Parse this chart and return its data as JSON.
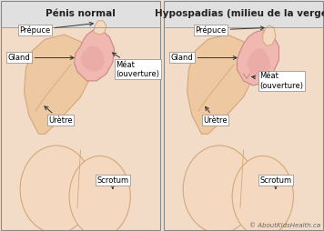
{
  "bg_color": "#f2dcc8",
  "header_color": "#e0e0e0",
  "border_color": "#888888",
  "skin_light": "#f5d8c0",
  "skin_mid": "#eec8a0",
  "skin_edge": "#d4a878",
  "glans_fill": "#f0b8b0",
  "glans_edge": "#c88888",
  "glans_shadow": "#e8a0a0",
  "white": "#ffffff",
  "arrow_color": "#333333",
  "dashed_color": "#d8c8b8",
  "title_left": "Pénis normal",
  "title_right": "Hypospadias (milieu de la verge)",
  "label_prepuce": "Prépuce",
  "label_gland": "Gland",
  "label_meat": "Méat\n(ouverture)",
  "label_uretre": "Urètre",
  "label_scrotum": "Scrotum",
  "credit": "© AboutKidsHealth.ca",
  "title_fontsize": 7.5,
  "label_fontsize": 6,
  "credit_fontsize": 5
}
